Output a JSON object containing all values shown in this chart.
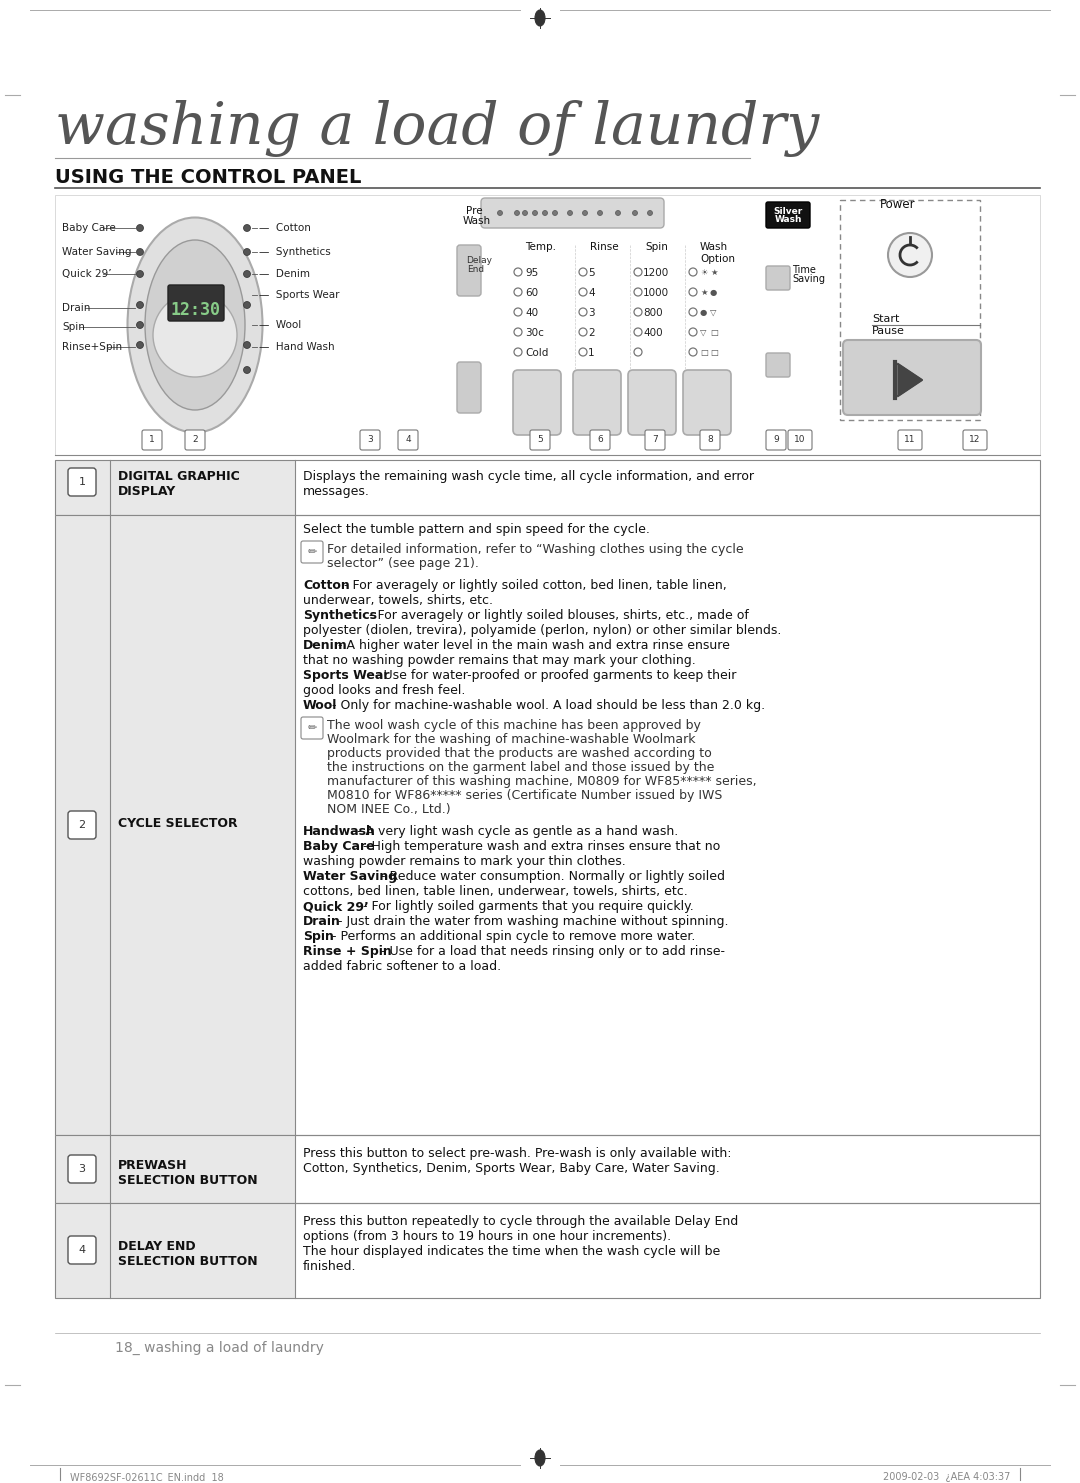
{
  "page_title": "washing a load of laundry",
  "section_title": "USING THE CONTROL PANEL",
  "bg_color": "#ffffff",
  "footer_left": "WF8692SF-02611C_EN.indd  18",
  "footer_right": "2009-02-03  ¿AEA 4:03:37",
  "page_number": "18_ washing a load of laundry",
  "left_labels": [
    "Baby Care",
    "Water Saving",
    "Quick 29’",
    "Drain",
    "Spin",
    "Rinse+Spin"
  ],
  "right_labels": [
    "Cotton",
    "Synthetics",
    "Denim",
    "Sports Wear",
    "Wool",
    "Hand Wash"
  ],
  "temp_labels": [
    "95",
    "60",
    "40",
    "30c",
    "Cold"
  ],
  "rinse_labels": [
    "5",
    "4",
    "3",
    "2",
    "1"
  ],
  "spin_labels": [
    "1200",
    "1000",
    "800",
    "400",
    ""
  ],
  "col_headers": [
    "Temp.",
    "Rinse",
    "Spin",
    "Wash\nOption"
  ],
  "num_labels": [
    "1",
    "2",
    "3",
    "4",
    "5",
    "6",
    "7",
    "8",
    "9",
    "10",
    "11",
    "12"
  ],
  "row1_title": "DIGITAL GRAPHIC\nDISPLAY",
  "row1_text": "Displays the remaining wash cycle time, all cycle information, and error\nmessages.",
  "row2_title": "CYCLE SELECTOR",
  "row2_text1": "Select the tumble pattern and spin speed for the cycle.",
  "row2_note1": "For detailed information, refer to “Washing clothes using the cycle\nselector” (see page 21).",
  "row2_text2_lines": [
    "Cotton - For averagely or lightly soiled cotton, bed linen, table linen,",
    "underwear, towels, shirts, etc.",
    "Synthetics - For averagely or lightly soiled blouses, shirts, etc., made of",
    "polyester (diolen, trevira), polyamide (perlon, nylon) or other similar blends.",
    "Denim - A higher water level in the main wash and extra rinse ensure",
    "that no washing powder remains that may mark your clothing.",
    "Sports Wear - Use for water-proofed or proofed garments to keep their",
    "good looks and fresh feel.",
    "Wool - Only for machine-washable wool. A load should be less than 2.0 kg."
  ],
  "row2_bold2": [
    "Cotton",
    "Synthetics",
    "Denim",
    "Sports Wear",
    "Wool"
  ],
  "row2_note2_lines": [
    "The wool wash cycle of this machine has been approved by",
    "Woolmark for the washing of machine-washable Woolmark",
    "products provided that the products are washed according to",
    "the instructions on the garment label and those issued by the",
    "manufacturer of this washing machine, M0809 for WF85***** series,",
    "M0810 for WF86***** series (Certificate Number issued by IWS",
    "NOM INEE Co., Ltd.)"
  ],
  "row2_text3_lines": [
    "Handwash - A very light wash cycle as gentle as a hand wash.",
    "Baby Care - High temperature wash and extra rinses ensure that no",
    "washing powder remains to mark your thin clothes.",
    "Water Saving - Reduce water consumption. Normally or lightly soiled",
    "cottons, bed linen, table linen, underwear, towels, shirts, etc.",
    "Quick 29’ - For lightly soiled garments that you require quickly.",
    "Drain - Just drain the water from washing machine without spinning.",
    "Spin - Performs an additional spin cycle to remove more water.",
    "Rinse + Spin - Use for a load that needs rinsing only or to add rinse-",
    "added fabric softener to a load."
  ],
  "row2_bold3": [
    "Handwash",
    "Baby Care",
    "Water Saving",
    "Quick 29’",
    "Drain",
    "Spin",
    "Rinse + Spin"
  ],
  "row3_title": "PREWASH\nSELECTION BUTTON",
  "row3_text_lines": [
    "Press this button to select pre-wash. Pre-wash is only available with:",
    "Cotton, Synthetics, Denim, Sports Wear, Baby Care, Water Saving."
  ],
  "row4_title": "DELAY END\nSELECTION BUTTON",
  "row4_text_lines": [
    "Press this button repeatedly to cycle through the available Delay End",
    "options (from 3 hours to 19 hours in one hour increments).",
    "The hour displayed indicates the time when the wash cycle will be",
    "finished."
  ]
}
